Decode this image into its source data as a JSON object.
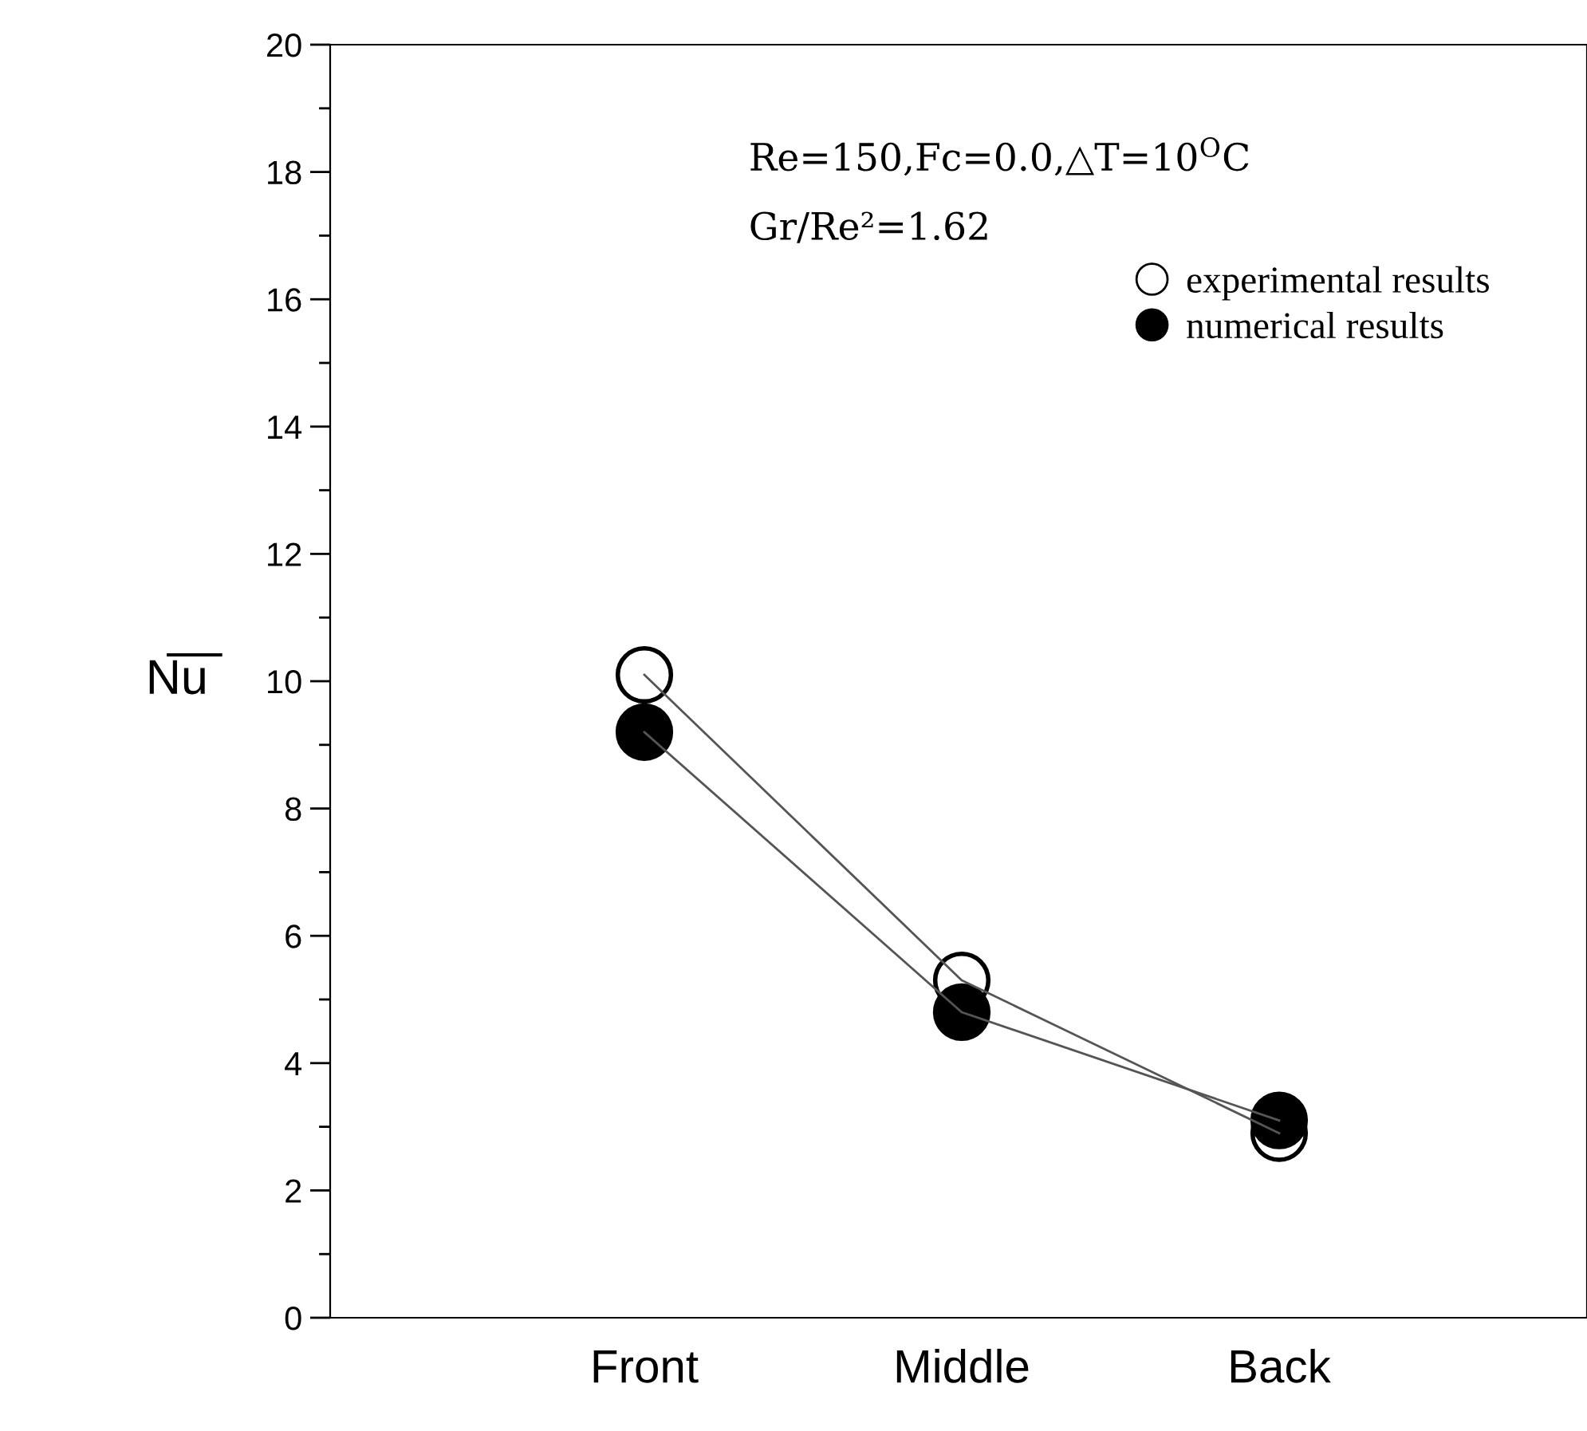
{
  "chart_data": {
    "type": "line",
    "ylabel": "N̅u̅",
    "categories": [
      "Front",
      "Middle",
      "Back"
    ],
    "series": [
      {
        "name": "experimental results",
        "color": "#ffffff",
        "values": [
          10.1,
          5.3,
          2.9
        ]
      },
      {
        "name": "numerical results",
        "color": "#000000",
        "values": [
          9.2,
          4.8,
          3.1
        ]
      }
    ],
    "annotations": [
      "Re=150,Fc=0.0,△T=10$^{O}$C",
      "Gr/Re²=1.62"
    ],
    "ylim": [
      0,
      20
    ],
    "yticks": [
      0,
      2,
      4,
      6,
      8,
      10,
      12,
      14,
      16,
      18,
      20
    ],
    "marker": "circle",
    "line_style": "solid",
    "grid": false,
    "legend": "top right"
  }
}
